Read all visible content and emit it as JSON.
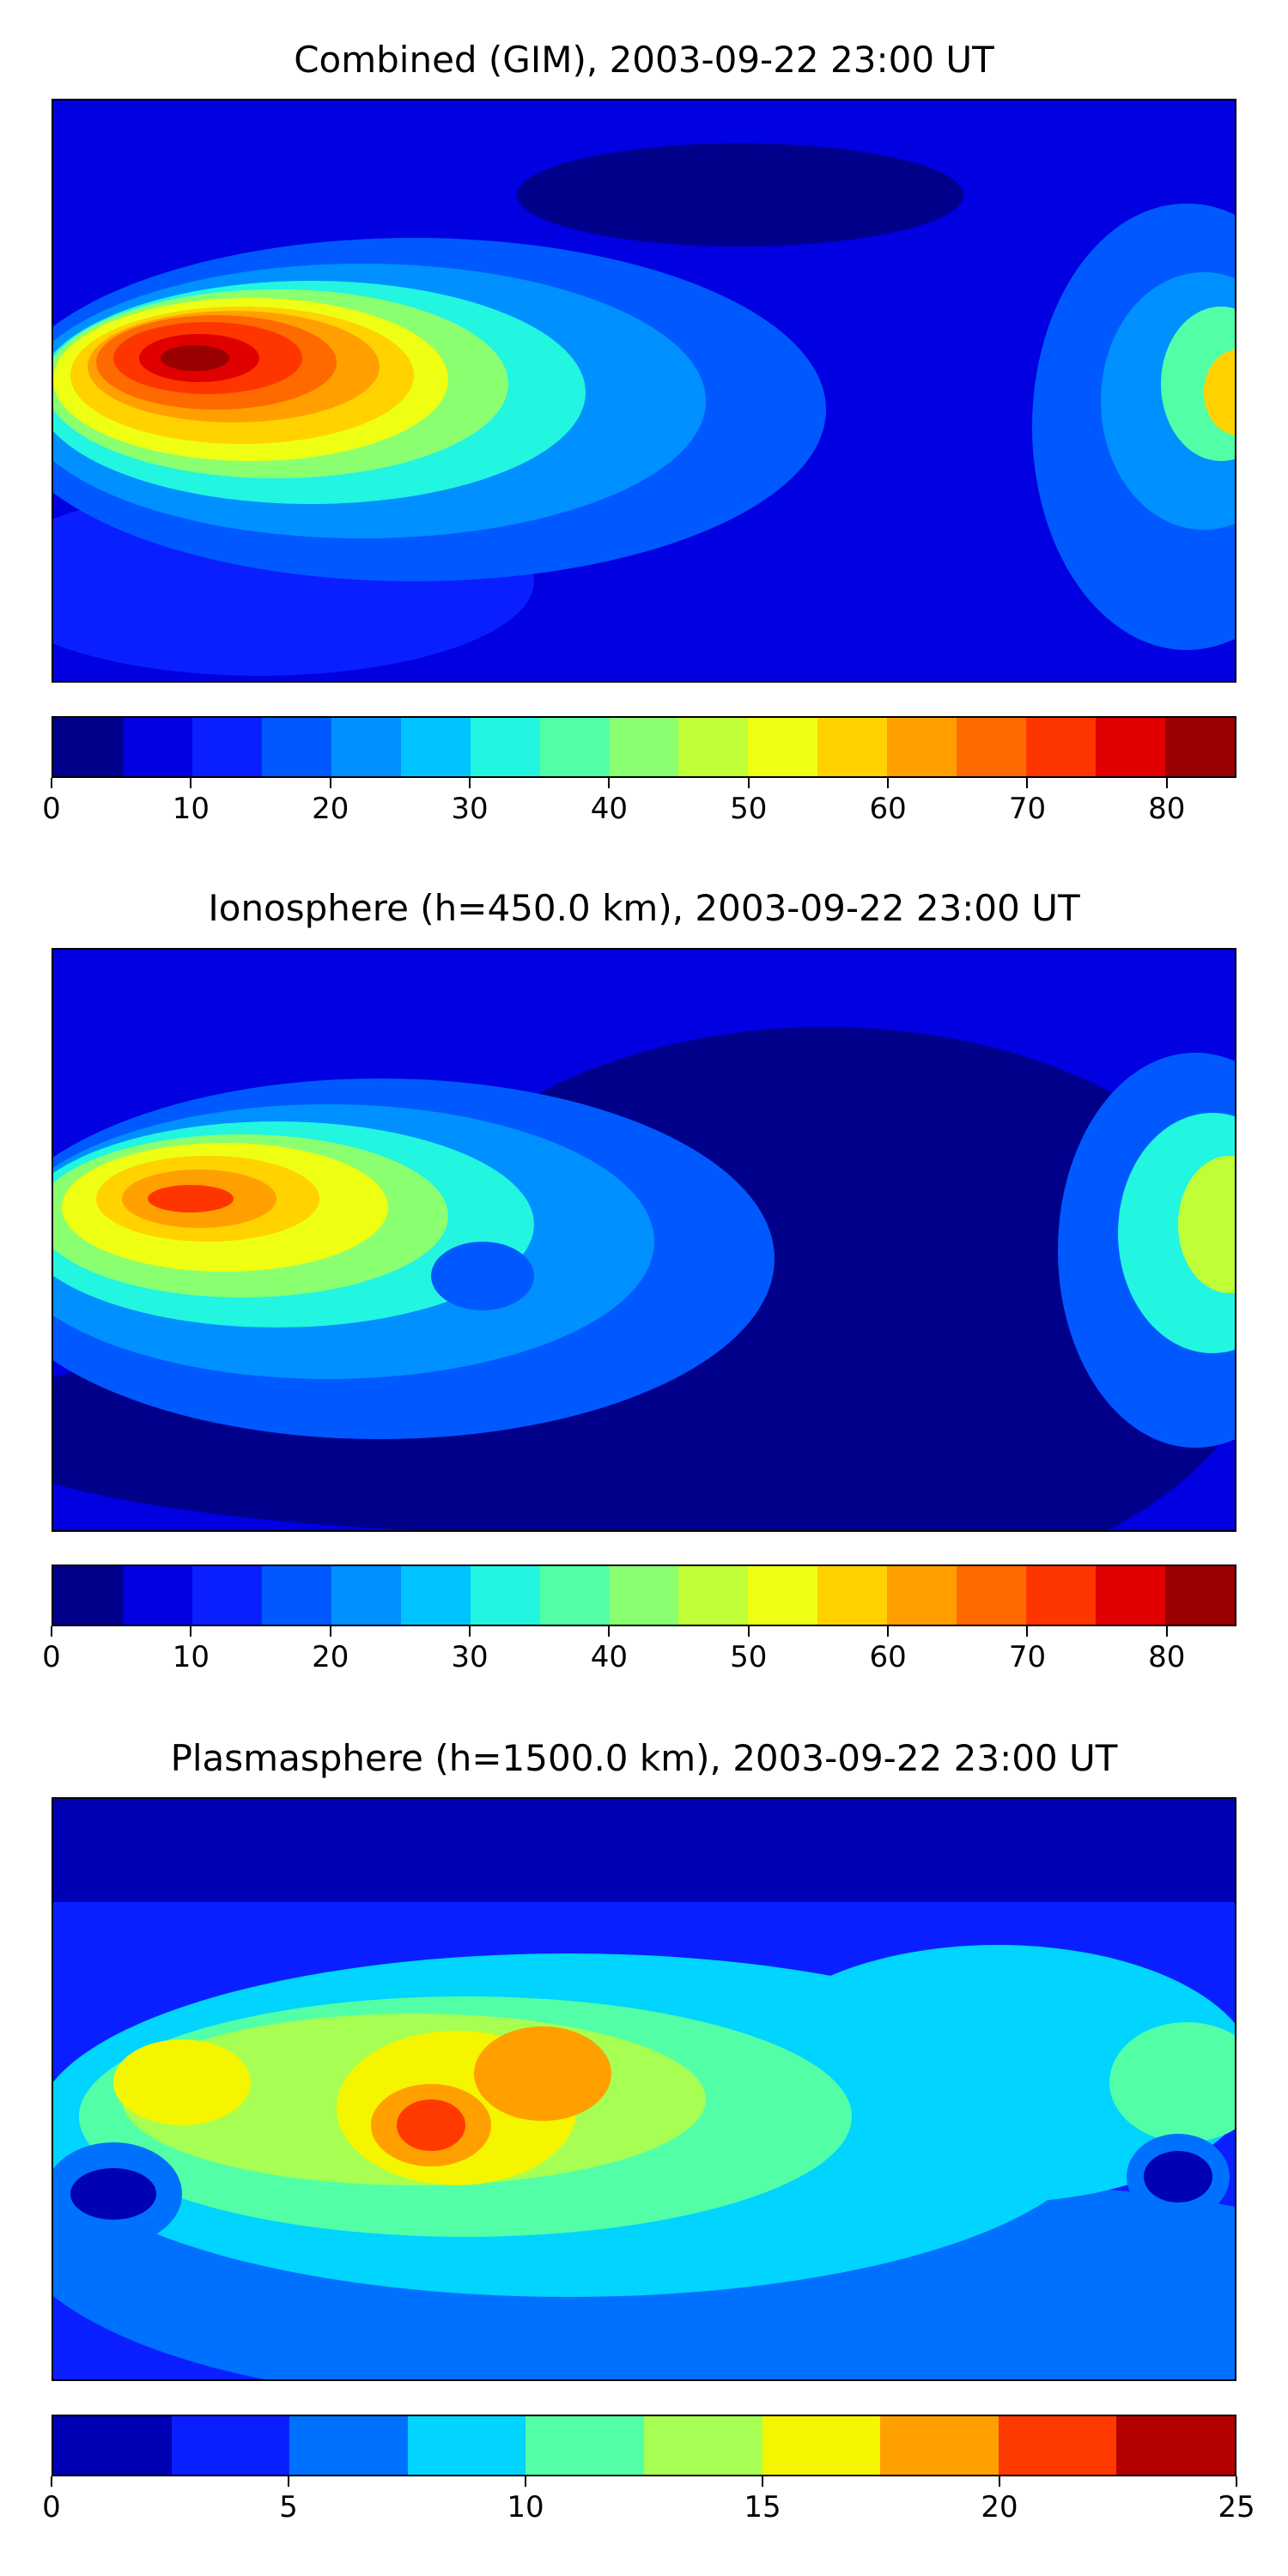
{
  "panels": [
    {
      "title": "Combined (GIM), 2003-09-22 23:00 UT",
      "colorbar": {
        "min": 0,
        "max": 85,
        "step": 5,
        "tick_labels": [
          "0",
          "10",
          "20",
          "30",
          "40",
          "50",
          "60",
          "70",
          "80"
        ],
        "tick_values": [
          0,
          10,
          20,
          30,
          40,
          50,
          60,
          70,
          80
        ],
        "colors": [
          "#00008b",
          "#0000e0",
          "#0a1fff",
          "#0059ff",
          "#0090ff",
          "#00c2ff",
          "#22f5e0",
          "#52ffa6",
          "#8aff70",
          "#c0ff38",
          "#eeff14",
          "#ffd200",
          "#ffa000",
          "#ff6a00",
          "#ff3500",
          "#e00000",
          "#990000"
        ]
      }
    },
    {
      "title": "Ionosphere  (h=450.0 km), 2003-09-22 23:00 UT",
      "colorbar": {
        "min": 0,
        "max": 85,
        "step": 5,
        "tick_labels": [
          "0",
          "10",
          "20",
          "30",
          "40",
          "50",
          "60",
          "70",
          "80"
        ],
        "tick_values": [
          0,
          10,
          20,
          30,
          40,
          50,
          60,
          70,
          80
        ],
        "colors": [
          "#00008b",
          "#0000e0",
          "#0a1fff",
          "#0059ff",
          "#0090ff",
          "#00c2ff",
          "#22f5e0",
          "#52ffa6",
          "#8aff70",
          "#c0ff38",
          "#eeff14",
          "#ffd200",
          "#ffa000",
          "#ff6a00",
          "#ff3500",
          "#e00000",
          "#990000"
        ]
      }
    },
    {
      "title": "Plasmasphere (h=1500.0 km), 2003-09-22 23:00 UT",
      "colorbar": {
        "min": 0,
        "max": 25,
        "step": 2.5,
        "tick_labels": [
          "0",
          "5",
          "10",
          "15",
          "20",
          "25"
        ],
        "tick_values": [
          0,
          5,
          10,
          15,
          20,
          25
        ],
        "colors": [
          "#0000b4",
          "#0a1fff",
          "#0070ff",
          "#00d4ff",
          "#52ffa6",
          "#a6ff52",
          "#f5f500",
          "#ff9f00",
          "#ff3a00",
          "#b40000"
        ]
      }
    }
  ]
}
